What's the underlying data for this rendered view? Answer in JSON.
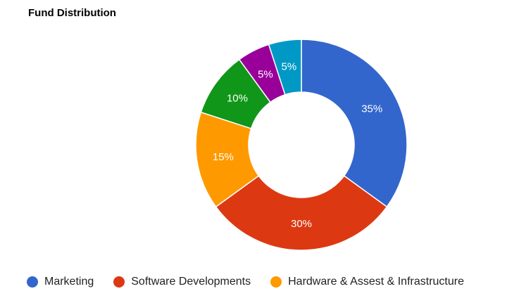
{
  "chart_data": {
    "type": "pie",
    "variant": "donut",
    "title": "Fund Distribution",
    "slices": [
      {
        "label": "Marketing",
        "value": 35,
        "display": "35%",
        "color": "#3366cc"
      },
      {
        "label": "Software Developments",
        "value": 30,
        "display": "30%",
        "color": "#dc3912"
      },
      {
        "label": "Hardware & Assest & Infrastructure",
        "value": 15,
        "display": "15%",
        "color": "#ff9900"
      },
      {
        "label": "",
        "value": 10,
        "display": "10%",
        "color": "#109618"
      },
      {
        "label": "",
        "value": 5,
        "display": "5%",
        "color": "#990099"
      },
      {
        "label": "",
        "value": 5,
        "display": "5%",
        "color": "#0099c6"
      }
    ],
    "legend_position": "bottom"
  }
}
